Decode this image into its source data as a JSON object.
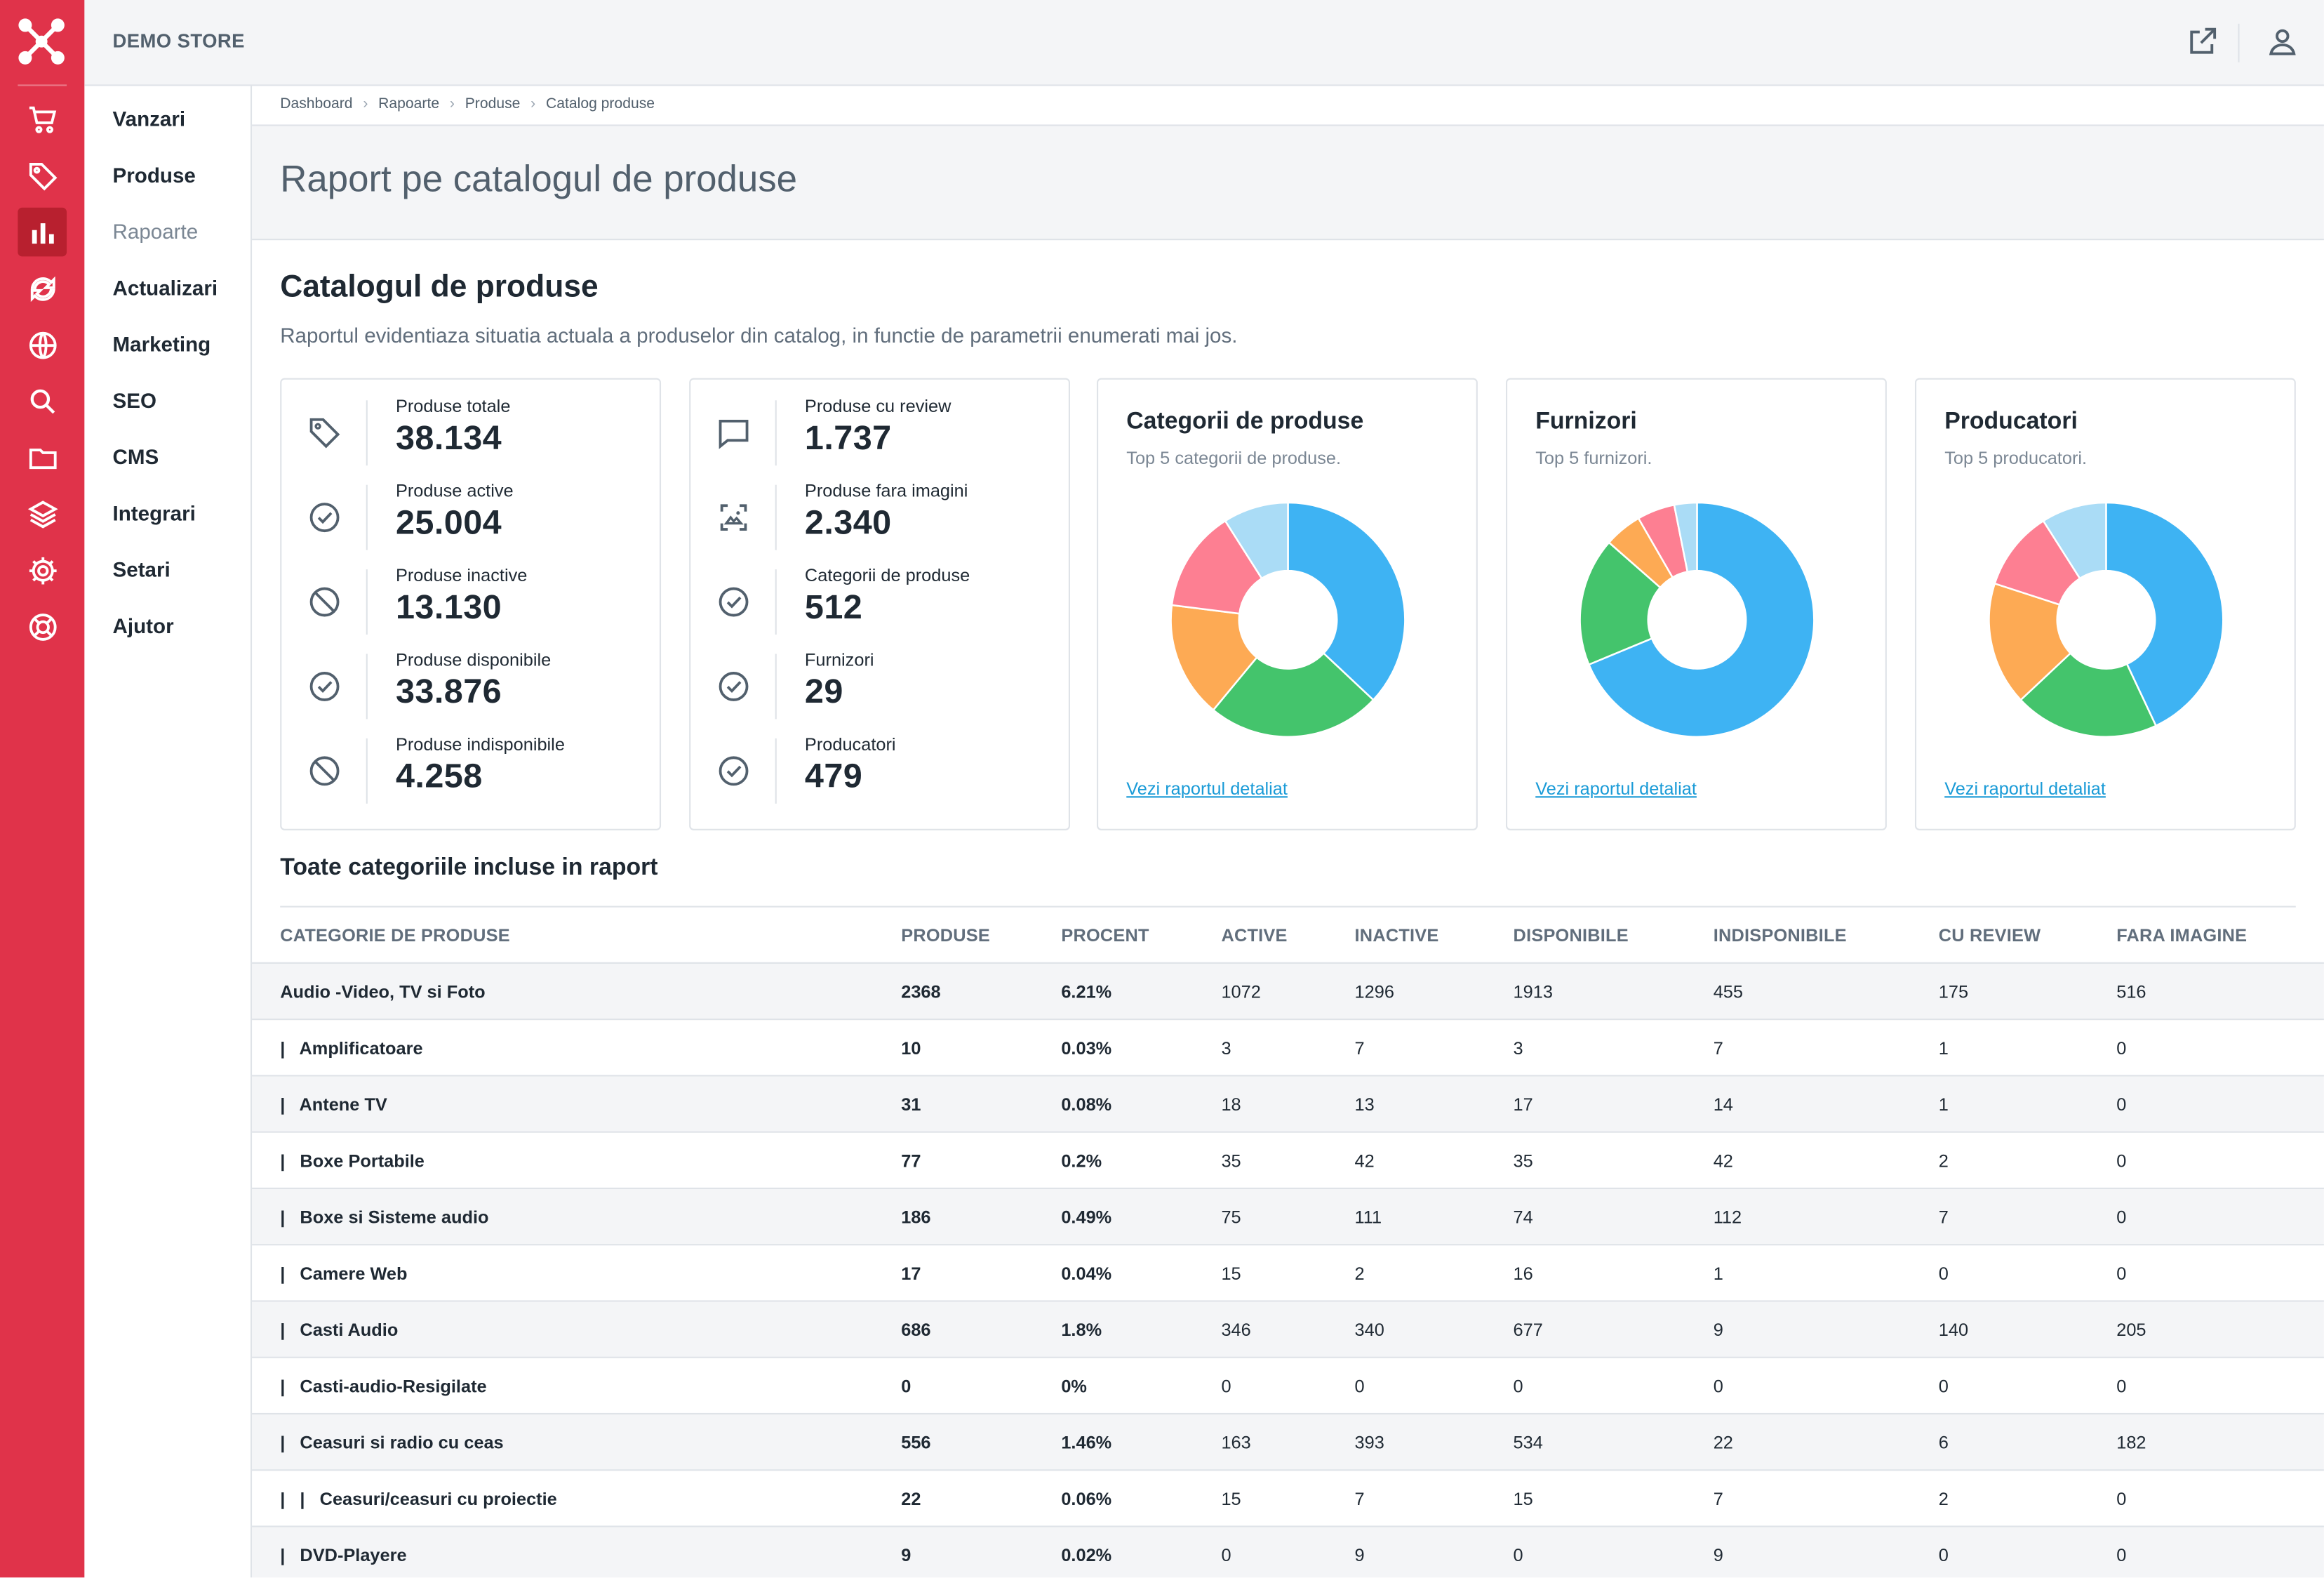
{
  "topbar": {
    "store_name": "DEMO STORE"
  },
  "rail_icons": [
    "logo-icon",
    "cart-icon",
    "tag-icon",
    "bar-chart-icon",
    "sync-icon",
    "globe-icon",
    "search-icon",
    "folder-icon",
    "layers-icon",
    "gear-icon",
    "lifebuoy-icon"
  ],
  "nav": {
    "items": [
      "Vanzari",
      "Produse",
      "Rapoarte",
      "Actualizari",
      "Marketing",
      "SEO",
      "CMS",
      "Integrari",
      "Setari",
      "Ajutor"
    ],
    "active": "Rapoarte"
  },
  "breadcrumb": [
    "Dashboard",
    "Rapoarte",
    "Produse",
    "Catalog produse"
  ],
  "page": {
    "title": "Raport pe catalogul de produse",
    "section_title": "Catalogul de produse",
    "section_desc": "Raportul evidentiaza situatia actuala a produselor din catalog, in functie de parametrii enumerati mai jos."
  },
  "stats_left": [
    {
      "icon": "tag-icon",
      "label": "Produse totale",
      "value": "38.134"
    },
    {
      "icon": "check-circle-icon",
      "label": "Produse active",
      "value": "25.004"
    },
    {
      "icon": "block-icon",
      "label": "Produse inactive",
      "value": "13.130"
    },
    {
      "icon": "check-circle-icon",
      "label": "Produse disponibile",
      "value": "33.876"
    },
    {
      "icon": "block-icon",
      "label": "Produse indisponibile",
      "value": "4.258"
    }
  ],
  "stats_right": [
    {
      "icon": "comment-icon",
      "label": "Produse cu review",
      "value": "1.737"
    },
    {
      "icon": "image-off-icon",
      "label": "Produse fara imagini",
      "value": "2.340"
    },
    {
      "icon": "check-circle-icon",
      "label": "Categorii de produse",
      "value": "512"
    },
    {
      "icon": "check-circle-icon",
      "label": "Furnizori",
      "value": "29"
    },
    {
      "icon": "check-circle-icon",
      "label": "Producatori",
      "value": "479"
    }
  ],
  "pie_cards": [
    {
      "title": "Categorii de produse",
      "subtitle": "Top 5 categorii de produse.",
      "link": "Vezi raportul detaliat"
    },
    {
      "title": "Furnizori",
      "subtitle": "Top 5 furnizori.",
      "link": "Vezi raportul detaliat"
    },
    {
      "title": "Producatori",
      "subtitle": "Top 5 producatori.",
      "link": "Vezi raportul detaliat"
    }
  ],
  "chart_data": [
    {
      "type": "pie",
      "donut": true,
      "values": [
        37,
        24,
        16,
        14,
        9
      ],
      "colors": [
        "#3eb3f3",
        "#44c46c",
        "#fdaa54",
        "#fd7f92",
        "#aadcf6"
      ]
    },
    {
      "type": "pie",
      "donut": true,
      "values": [
        66,
        17,
        5,
        5,
        3
      ],
      "colors": [
        "#3eb3f3",
        "#44c46c",
        "#fdaa54",
        "#fd7f92",
        "#aadcf6"
      ]
    },
    {
      "type": "pie",
      "donut": true,
      "values": [
        43,
        20,
        17,
        11,
        9
      ],
      "colors": [
        "#3eb3f3",
        "#44c46c",
        "#fdaa54",
        "#fd7f92",
        "#aadcf6"
      ]
    }
  ],
  "table": {
    "title": "Toate categoriile incluse in raport",
    "headers": [
      "CATEGORIE DE PRODUSE",
      "PRODUSE",
      "PROCENT",
      "ACTIVE",
      "INACTIVE",
      "DISPONIBILE",
      "INDISPONIBILE",
      "CU REVIEW",
      "FARA IMAGINE"
    ],
    "rows": [
      [
        "Audio -Video, TV si Foto",
        "2368",
        "6.21%",
        "1072",
        "1296",
        "1913",
        "455",
        "175",
        "516"
      ],
      [
        "|   Amplificatoare",
        "10",
        "0.03%",
        "3",
        "7",
        "3",
        "7",
        "1",
        "0"
      ],
      [
        "|   Antene TV",
        "31",
        "0.08%",
        "18",
        "13",
        "17",
        "14",
        "1",
        "0"
      ],
      [
        "|   Boxe Portabile",
        "77",
        "0.2%",
        "35",
        "42",
        "35",
        "42",
        "2",
        "0"
      ],
      [
        "|   Boxe si Sisteme audio",
        "186",
        "0.49%",
        "75",
        "111",
        "74",
        "112",
        "7",
        "0"
      ],
      [
        "|   Camere Web",
        "17",
        "0.04%",
        "15",
        "2",
        "16",
        "1",
        "0",
        "0"
      ],
      [
        "|   Casti Audio",
        "686",
        "1.8%",
        "346",
        "340",
        "677",
        "9",
        "140",
        "205"
      ],
      [
        "|   Casti-audio-Resigilate",
        "0",
        "0%",
        "0",
        "0",
        "0",
        "0",
        "0",
        "0"
      ],
      [
        "|   Ceasuri si radio cu ceas",
        "556",
        "1.46%",
        "163",
        "393",
        "534",
        "22",
        "6",
        "182"
      ],
      [
        "|   |   Ceasuri/ceasuri cu proiectie",
        "22",
        "0.06%",
        "15",
        "7",
        "15",
        "7",
        "2",
        "0"
      ],
      [
        "|   DVD-Playere",
        "9",
        "0.02%",
        "0",
        "9",
        "0",
        "9",
        "0",
        "0"
      ]
    ]
  }
}
